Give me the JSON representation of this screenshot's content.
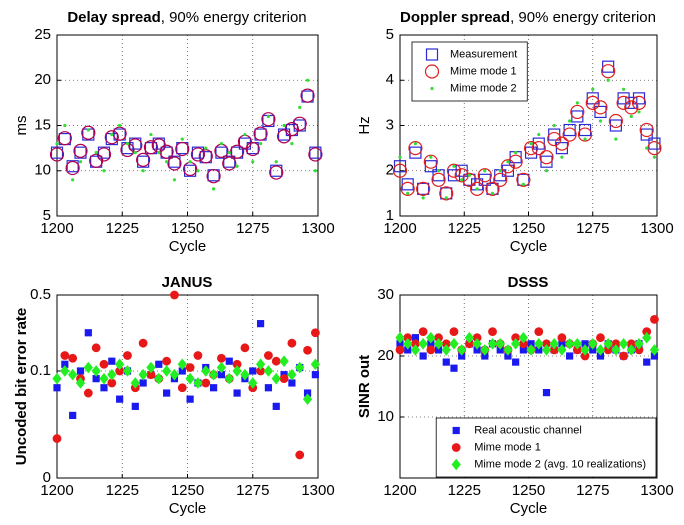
{
  "chart_data": [
    {
      "type": "scatter",
      "title": "Delay spread",
      "title_suffix": ", 90% energy criterion",
      "xlabel": "Cycle",
      "ylabel": "ms",
      "x": [
        1200,
        1203,
        1206,
        1209,
        1212,
        1215,
        1218,
        1221,
        1224,
        1227,
        1230,
        1233,
        1236,
        1239,
        1242,
        1245,
        1248,
        1251,
        1254,
        1257,
        1260,
        1263,
        1266,
        1269,
        1272,
        1275,
        1278,
        1281,
        1284,
        1287,
        1290,
        1293,
        1296,
        1299
      ],
      "xlim": [
        1200,
        1300
      ],
      "xticks": [
        1200,
        1225,
        1250,
        1275,
        1300
      ],
      "ylim": [
        5,
        25
      ],
      "yticks": [
        5,
        10,
        15,
        20,
        25
      ],
      "grid": true,
      "series": [
        {
          "color": "#2b2bd6",
          "marker": "square",
          "filled": false,
          "values": [
            12,
            13.5,
            10.5,
            12,
            14,
            11,
            12,
            13.5,
            14,
            12.5,
            13,
            11,
            12.5,
            13,
            12,
            11,
            12.5,
            10,
            12,
            11.5,
            9.5,
            12,
            11,
            12,
            13,
            12.5,
            14,
            15.5,
            10,
            14,
            14.5,
            15,
            18.2,
            12
          ]
        },
        {
          "color": "#b0004e",
          "marker": "circle",
          "filled": false,
          "values": [
            11.8,
            13.6,
            10.3,
            12.2,
            14.2,
            11.1,
            11.8,
            13.7,
            14.1,
            12.3,
            12.8,
            11.2,
            12.6,
            12.8,
            12.1,
            10.8,
            12.4,
            10.2,
            11.8,
            11.6,
            9.4,
            12.2,
            10.8,
            12.1,
            13.2,
            12.4,
            14.1,
            15.7,
            9.8,
            13.8,
            14.6,
            15.2,
            18.3,
            11.8
          ]
        },
        {
          "color": "#33dd33",
          "marker": "dot",
          "filled": true,
          "values": [
            13,
            15,
            9,
            11,
            14.5,
            12,
            10,
            14,
            15,
            13,
            12,
            10,
            14,
            12,
            11,
            9,
            13.5,
            11,
            10,
            12.5,
            8,
            13,
            12,
            10.5,
            14,
            11,
            13,
            16,
            11,
            15,
            13,
            17,
            20,
            10
          ]
        }
      ]
    },
    {
      "type": "scatter",
      "title": "Doppler spread",
      "title_suffix": ", 90% energy criterion",
      "xlabel": "Cycle",
      "ylabel": "Hz",
      "x": [
        1200,
        1203,
        1206,
        1209,
        1212,
        1215,
        1218,
        1221,
        1224,
        1227,
        1230,
        1233,
        1236,
        1239,
        1242,
        1245,
        1248,
        1251,
        1254,
        1257,
        1260,
        1263,
        1266,
        1269,
        1272,
        1275,
        1278,
        1281,
        1284,
        1287,
        1290,
        1293,
        1296,
        1299
      ],
      "xlim": [
        1200,
        1300
      ],
      "xticks": [
        1200,
        1225,
        1250,
        1275,
        1300
      ],
      "ylim": [
        1,
        5
      ],
      "yticks": [
        1,
        2,
        3,
        4,
        5
      ],
      "grid": true,
      "legend": "upper-left",
      "series": [
        {
          "name": "Measurement",
          "color": "#2b2bd6",
          "marker": "square",
          "filled": false,
          "values": [
            2.1,
            1.7,
            2.4,
            1.6,
            2.1,
            1.9,
            1.5,
            1.9,
            2.0,
            1.8,
            1.7,
            1.8,
            1.6,
            1.9,
            2.0,
            2.3,
            1.8,
            2.4,
            2.6,
            2.2,
            2.8,
            2.5,
            2.9,
            3.2,
            2.9,
            3.6,
            3.3,
            4.3,
            3.0,
            3.6,
            3.5,
            3.6,
            2.8,
            2.6
          ]
        },
        {
          "name": "Mime mode 1",
          "color": "#e02020",
          "marker": "circle",
          "filled": false,
          "values": [
            2.0,
            1.6,
            2.5,
            1.6,
            2.2,
            1.8,
            1.5,
            2.0,
            1.9,
            1.8,
            1.6,
            1.9,
            1.6,
            1.8,
            2.1,
            2.2,
            1.8,
            2.5,
            2.5,
            2.3,
            2.7,
            2.6,
            2.8,
            3.3,
            2.8,
            3.5,
            3.4,
            4.2,
            3.1,
            3.5,
            3.4,
            3.5,
            2.9,
            2.5
          ]
        },
        {
          "name": "Mime mode 2",
          "color": "#33dd33",
          "marker": "dot",
          "filled": true,
          "values": [
            2.3,
            1.5,
            2.6,
            1.4,
            2.3,
            2.0,
            1.4,
            2.1,
            1.8,
            1.9,
            1.6,
            2.0,
            1.5,
            2.0,
            2.2,
            2.4,
            1.7,
            2.6,
            2.8,
            2.0,
            3.0,
            2.3,
            3.1,
            3.5,
            2.7,
            3.8,
            3.1,
            4.0,
            2.7,
            3.8,
            3.2,
            3.3,
            2.5,
            2.3
          ]
        }
      ]
    },
    {
      "type": "scatter",
      "title": "JANUS",
      "xlabel": "Cycle",
      "ylabel": "Uncoded bit error rate",
      "x": [
        1200,
        1203,
        1206,
        1209,
        1212,
        1215,
        1218,
        1221,
        1224,
        1227,
        1230,
        1233,
        1236,
        1239,
        1242,
        1245,
        1248,
        1251,
        1254,
        1257,
        1260,
        1263,
        1266,
        1269,
        1272,
        1275,
        1278,
        1281,
        1284,
        1287,
        1290,
        1293,
        1296,
        1299
      ],
      "xlim": [
        1200,
        1300
      ],
      "xticks": [
        1200,
        1225,
        1250,
        1275,
        1300
      ],
      "ylim": [
        0,
        0.5
      ],
      "yticks": [
        0,
        0.1,
        0.5
      ],
      "yscale": "cbrt",
      "grid": true,
      "series": [
        {
          "color": "#1a1af0",
          "marker": "square",
          "filled": true,
          "values": [
            0.06,
            0.12,
            0.02,
            0.1,
            0.25,
            0.08,
            0.06,
            0.13,
            0.04,
            0.1,
            0.03,
            0.07,
            0.09,
            0.12,
            0.05,
            0.08,
            0.1,
            0.04,
            0.07,
            0.11,
            0.06,
            0.09,
            0.13,
            0.05,
            0.08,
            0.1,
            0.3,
            0.06,
            0.03,
            0.09,
            0.07,
            0.11,
            0.05,
            0.09
          ]
        },
        {
          "color": "#e81818",
          "marker": "circle",
          "filled": true,
          "values": [
            0.005,
            0.15,
            0.14,
            0.08,
            0.05,
            0.18,
            0.12,
            0.07,
            0.1,
            0.15,
            0.06,
            0.2,
            0.09,
            0.08,
            0.13,
            0.5,
            0.06,
            0.11,
            0.15,
            0.07,
            0.09,
            0.14,
            0.08,
            0.12,
            0.18,
            0.06,
            0.1,
            0.15,
            0.13,
            0.08,
            0.2,
            0.001,
            0.17,
            0.25
          ]
        },
        {
          "color": "#22ee22",
          "marker": "diamond",
          "filled": true,
          "values": [
            0.08,
            0.1,
            0.09,
            0.07,
            0.11,
            0.1,
            0.08,
            0.09,
            0.12,
            0.1,
            0.07,
            0.09,
            0.11,
            0.08,
            0.1,
            0.09,
            0.12,
            0.08,
            0.07,
            0.1,
            0.09,
            0.11,
            0.08,
            0.1,
            0.09,
            0.07,
            0.12,
            0.1,
            0.08,
            0.13,
            0.09,
            0.11,
            0.04,
            0.12
          ]
        }
      ]
    },
    {
      "type": "scatter",
      "title": "DSSS",
      "xlabel": "Cycle",
      "ylabel": "SINR out",
      "x": [
        1200,
        1203,
        1206,
        1209,
        1212,
        1215,
        1218,
        1221,
        1224,
        1227,
        1230,
        1233,
        1236,
        1239,
        1242,
        1245,
        1248,
        1251,
        1254,
        1257,
        1260,
        1263,
        1266,
        1269,
        1272,
        1275,
        1278,
        1281,
        1284,
        1287,
        1290,
        1293,
        1296,
        1299
      ],
      "xlim": [
        1200,
        1300
      ],
      "xticks": [
        1200,
        1225,
        1250,
        1275,
        1300
      ],
      "ylim": [
        0,
        30
      ],
      "yticks": [
        10,
        20,
        30
      ],
      "grid": true,
      "legend": "lower-right",
      "series": [
        {
          "name": "Real acoustic channel",
          "color": "#1a1af0",
          "marker": "square",
          "filled": true,
          "values": [
            22,
            21,
            23,
            20,
            22,
            21,
            19,
            18,
            20,
            22,
            21,
            20,
            22,
            21,
            20,
            19,
            21,
            22,
            21,
            14,
            21,
            22,
            20,
            21,
            22,
            21,
            20,
            22,
            21,
            20,
            21,
            22,
            19,
            20
          ]
        },
        {
          "name": "Mime mode 1",
          "color": "#e81818",
          "marker": "circle",
          "filled": true,
          "values": [
            21,
            23,
            22,
            24,
            21,
            23,
            22,
            24,
            21,
            22,
            23,
            21,
            24,
            22,
            21,
            23,
            22,
            21,
            24,
            22,
            21,
            23,
            22,
            21,
            20,
            22,
            23,
            21,
            22,
            20,
            22,
            21,
            24,
            26
          ]
        },
        {
          "name": "Mime mode 2 (avg. 10 realizations)",
          "color": "#22ee22",
          "marker": "diamond",
          "filled": true,
          "values": [
            23,
            22,
            21,
            22,
            23,
            22,
            21,
            22,
            21,
            23,
            22,
            21,
            22,
            22,
            21,
            22,
            23,
            21,
            22,
            21,
            22,
            21,
            22,
            22,
            21,
            22,
            21,
            22,
            21,
            22,
            21,
            22,
            23,
            21
          ]
        }
      ]
    }
  ]
}
